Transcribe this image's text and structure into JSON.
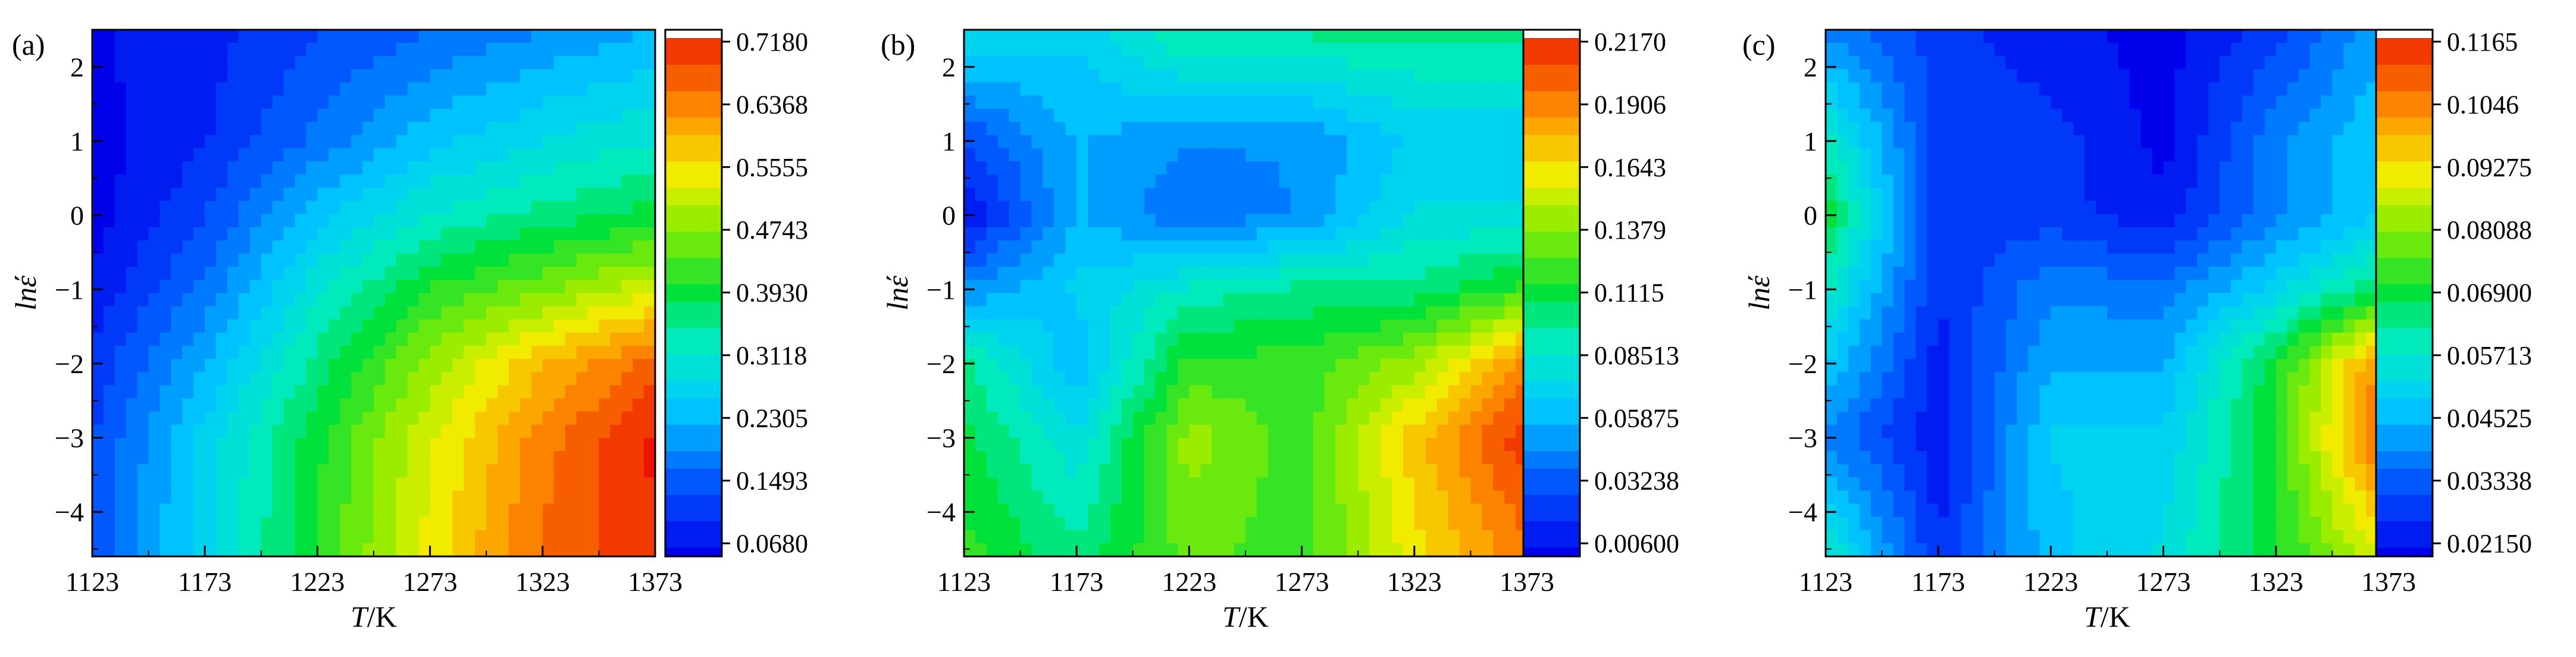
{
  "chart_data": [
    {
      "type": "heatmap",
      "panel_label": "(a)",
      "x_ticks": [
        "1123",
        "1173",
        "1223",
        "1273",
        "1323",
        "1373"
      ],
      "y_ticks": [
        "2",
        "1",
        "0",
        "−1",
        "−2",
        "−3",
        "−4"
      ],
      "xlim": [
        1123,
        1373
      ],
      "ylim": [
        -4.6,
        2.5
      ],
      "colorbar_ticks": [
        "0.7180",
        "0.6368",
        "0.5555",
        "0.4743",
        "0.3930",
        "0.3118",
        "0.2305",
        "0.1493",
        "0.0680"
      ],
      "colorbar_range": [
        0.068,
        0.718
      ],
      "z_grid": {
        "x": [
          1123,
          1173,
          1223,
          1273,
          1323,
          1373
        ],
        "y": [
          2.5,
          1,
          0,
          -1,
          -2,
          -3,
          -4.6
        ],
        "z": [
          [
            0.08,
            0.1,
            0.14,
            0.17,
            0.2,
            0.23
          ],
          [
            0.07,
            0.11,
            0.18,
            0.25,
            0.29,
            0.32
          ],
          [
            0.07,
            0.14,
            0.25,
            0.32,
            0.36,
            0.39
          ],
          [
            0.09,
            0.18,
            0.31,
            0.41,
            0.46,
            0.52
          ],
          [
            0.12,
            0.23,
            0.36,
            0.48,
            0.58,
            0.66
          ],
          [
            0.14,
            0.27,
            0.4,
            0.52,
            0.63,
            0.71
          ],
          [
            0.15,
            0.28,
            0.41,
            0.54,
            0.65,
            0.7
          ]
        ]
      }
    },
    {
      "type": "heatmap",
      "panel_label": "(b)",
      "x_ticks": [
        "1123",
        "1173",
        "1223",
        "1273",
        "1323",
        "1373"
      ],
      "y_ticks": [
        "2",
        "1",
        "0",
        "−1",
        "−2",
        "−3",
        "−4"
      ],
      "xlim": [
        1123,
        1373
      ],
      "ylim": [
        -4.6,
        2.5
      ],
      "colorbar_ticks": [
        "0.2170",
        "0.1906",
        "0.1643",
        "0.1379",
        "0.1115",
        "0.08513",
        "0.05875",
        "0.03238",
        "0.00600"
      ],
      "colorbar_range": [
        0.006,
        0.217
      ],
      "z_grid": {
        "x": [
          1123,
          1173,
          1223,
          1273,
          1323,
          1373
        ],
        "y": [
          2.5,
          1,
          0,
          -1,
          -2,
          -3,
          -4.6
        ],
        "z": [
          [
            0.08,
            0.07,
            0.1,
            0.1,
            0.1,
            0.1
          ],
          [
            0.03,
            0.06,
            0.05,
            0.05,
            0.07,
            0.07
          ],
          [
            0.01,
            0.06,
            0.04,
            0.05,
            0.08,
            0.08
          ],
          [
            0.05,
            0.07,
            0.09,
            0.1,
            0.1,
            0.12
          ],
          [
            0.1,
            0.06,
            0.12,
            0.12,
            0.14,
            0.19
          ],
          [
            0.11,
            0.08,
            0.14,
            0.12,
            0.17,
            0.21
          ],
          [
            0.12,
            0.1,
            0.13,
            0.12,
            0.16,
            0.19
          ]
        ]
      }
    },
    {
      "type": "heatmap",
      "panel_label": "(c)",
      "x_ticks": [
        "1123",
        "1173",
        "1223",
        "1273",
        "1323",
        "1373"
      ],
      "y_ticks": [
        "2",
        "1",
        "0",
        "−1",
        "−2",
        "−3",
        "−4"
      ],
      "xlim": [
        1123,
        1373
      ],
      "ylim": [
        -4.6,
        2.5
      ],
      "colorbar_ticks": [
        "0.1165",
        "0.1046",
        "0.09275",
        "0.08088",
        "0.06900",
        "0.05713",
        "0.04525",
        "0.03338",
        "0.02150"
      ],
      "colorbar_range": [
        0.0215,
        0.1165
      ],
      "z_grid": {
        "x": [
          1123,
          1173,
          1223,
          1273,
          1323,
          1373
        ],
        "y": [
          2.5,
          1,
          0,
          -1,
          -2,
          -3,
          -4.6
        ],
        "z": [
          [
            0.04,
            0.03,
            0.025,
            0.022,
            0.03,
            0.045
          ],
          [
            0.06,
            0.03,
            0.03,
            0.022,
            0.04,
            0.05
          ],
          [
            0.07,
            0.03,
            0.03,
            0.025,
            0.04,
            0.05
          ],
          [
            0.06,
            0.028,
            0.04,
            0.038,
            0.052,
            0.068
          ],
          [
            0.05,
            0.026,
            0.045,
            0.045,
            0.07,
            0.105
          ],
          [
            0.04,
            0.025,
            0.05,
            0.05,
            0.072,
            0.11
          ],
          [
            0.06,
            0.028,
            0.048,
            0.055,
            0.07,
            0.09
          ]
        ]
      }
    }
  ],
  "text": {
    "x_axis_italic": "T",
    "x_axis_rest": "/K",
    "y_axis_italic": "lnέ"
  }
}
